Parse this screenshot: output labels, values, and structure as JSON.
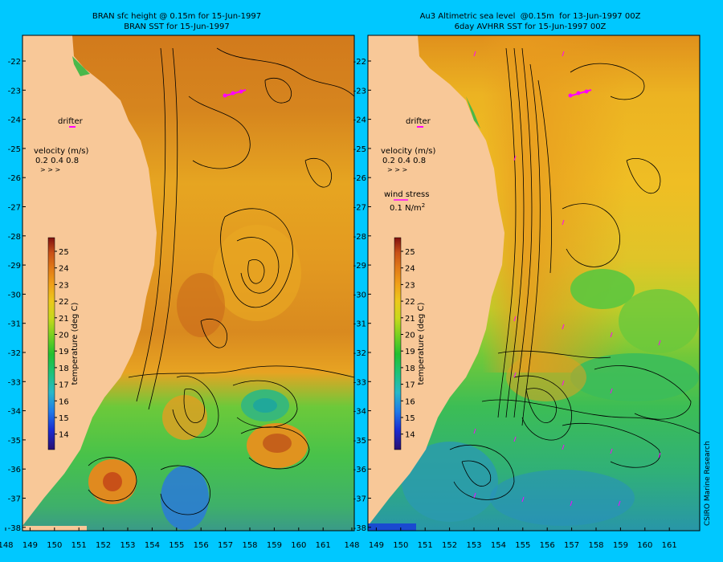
{
  "panels": [
    {
      "title_line1": "BRAN sfc height @ 0.15m for 15-Jun-1997",
      "title_line2": "BRAN SST for 15-Jun-1997"
    },
    {
      "title_line1": "Au3 Altimetric sea level  @0.15m  for 13-Jun-1997 00Z",
      "title_line2": "6day AVHRR SST for 15-Jun-1997 00Z"
    }
  ],
  "legend": {
    "drifter": "drifter",
    "velocity_title": "velocity (m/s)",
    "velocity_scale": "0.2 0.4 0.8",
    "wind_title": "wind stress",
    "wind_value": "0.1 N/m",
    "wind_sup": "2"
  },
  "colorbar": {
    "label": "temperature (deg C)",
    "ticks": [
      "25",
      "24",
      "23",
      "22",
      "21",
      "20",
      "19",
      "18",
      "17",
      "16",
      "15",
      "14"
    ],
    "colors": [
      "#2a0f70",
      "#1a2ad0",
      "#1f7ae8",
      "#28b8c8",
      "#1ec27a",
      "#22c030",
      "#7ad020",
      "#c8d81c",
      "#ecc81c",
      "#f0a018",
      "#e07818",
      "#c85018",
      "#a82818",
      "#801010"
    ]
  },
  "axes": {
    "lon_ticks": [
      "148",
      "149",
      "150",
      "151",
      "152",
      "153",
      "154",
      "155",
      "156",
      "157",
      "158",
      "159",
      "160",
      "161"
    ],
    "lat_ticks": [
      "-22",
      "-23",
      "-24",
      "-25",
      "-26",
      "-27",
      "-28",
      "-29",
      "-30",
      "-31",
      "-32",
      "-33",
      "-34",
      "-35",
      "-36",
      "-37",
      "-38"
    ]
  },
  "credit": "CSIRO Marine Research",
  "colors": {
    "frame": "#00c8ff",
    "land": "#f8c898",
    "vector": "#ff00ff"
  }
}
